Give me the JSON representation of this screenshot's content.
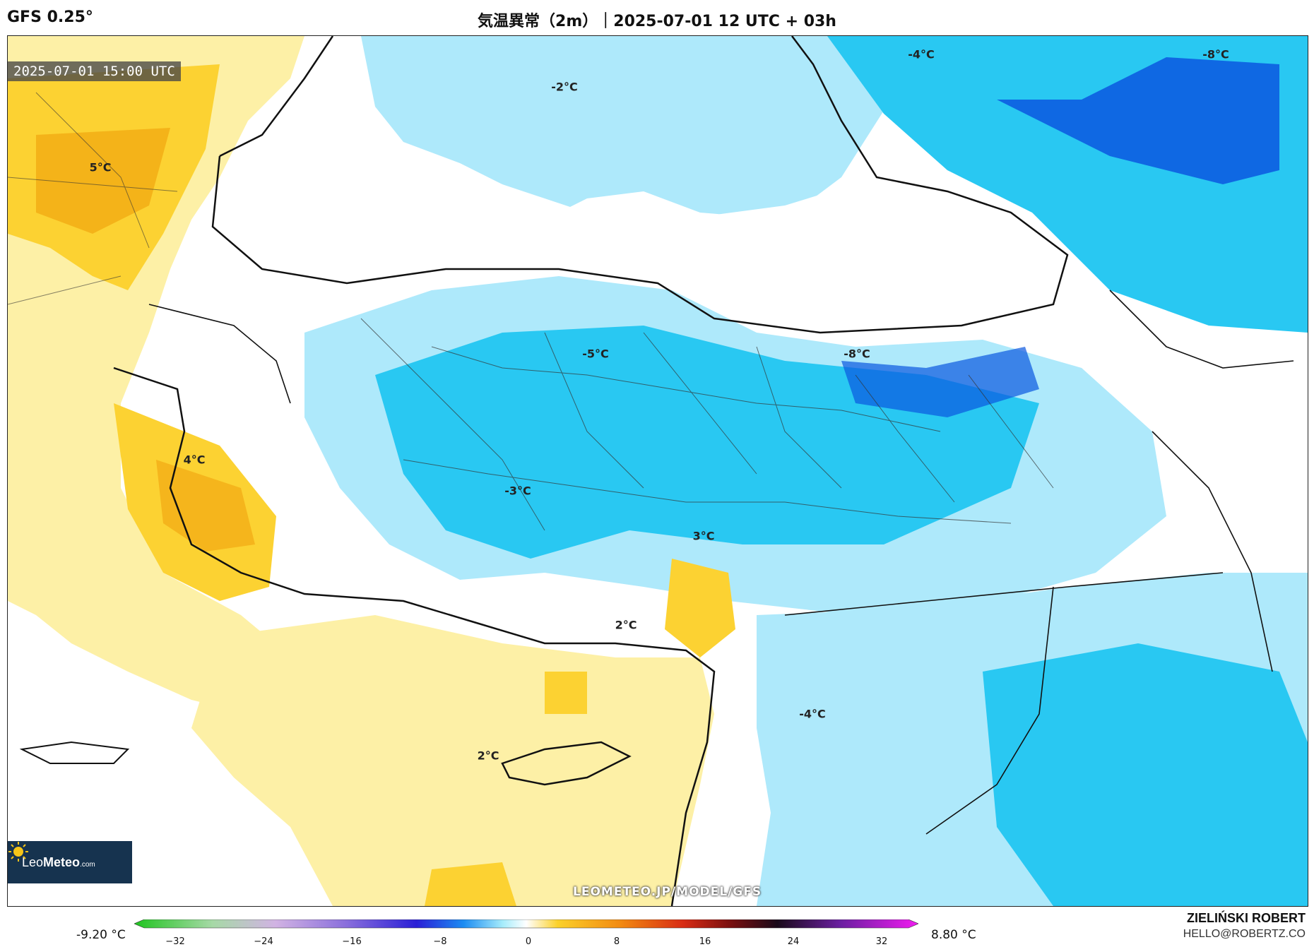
{
  "header": {
    "model": "GFS 0.25°",
    "title": "気温異常（2m）｜2025-07-01 12 UTC + 03h"
  },
  "map": {
    "valid_time": "2025-07-01 15:00 UTC",
    "watermark": "LEOMETEO.JP/MODEL/GFS",
    "logo": {
      "name_light": "Leo",
      "name_bold": "Meteo",
      "suffix": ".com"
    },
    "anomaly_labels": [
      "-4°C",
      "-8°C",
      "-2°C",
      "5°C",
      "-5°C",
      "-8°C",
      "4°C",
      "-3°C",
      "3°C",
      "2°C",
      "-4°C",
      "2°C"
    ],
    "colors": {
      "sea_neutral": "#ffffff",
      "cold_light": "#aee9fb",
      "cold_mid": "#29c8f2",
      "cold_deep": "#0a57e0",
      "warm_light": "#fdf0a6",
      "warm_mid": "#fcd232",
      "warm_deep": "#f2a812",
      "borders": "#111111"
    }
  },
  "legend": {
    "min_label": "-9.20 °C",
    "max_label": "8.80 °C",
    "ticks": [
      "−32",
      "−24",
      "−16",
      "−8",
      "0",
      "8",
      "16",
      "24",
      "32"
    ],
    "stops": [
      "#1fc41f",
      "#a6d9a6",
      "#d1b3e3",
      "#8a6fdc",
      "#2a1fd6",
      "#1c8cf2",
      "#a6ecfb",
      "#ffffff",
      "#fbd12a",
      "#f28a11",
      "#d82c14",
      "#7a0f0f",
      "#1a0a1a",
      "#6a1fa0",
      "#f01cf0"
    ]
  },
  "footer": {
    "author": "ZIELIŃSKI ROBERT",
    "email": "HELLO@ROBERTZ.CO"
  }
}
